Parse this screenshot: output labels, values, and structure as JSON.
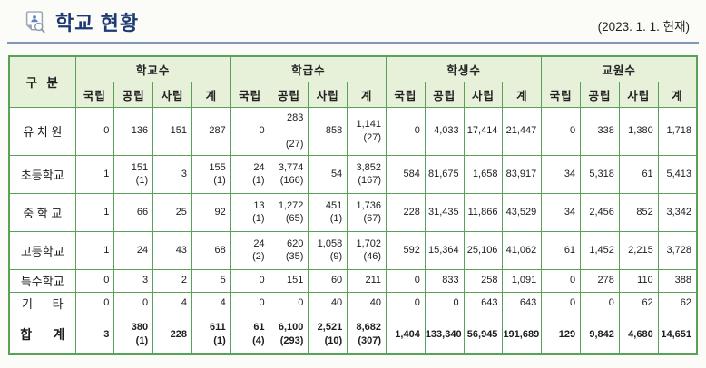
{
  "page": {
    "title": "학교 현황",
    "date_note": "(2023. 1. 1. 현재)",
    "icon": "document-search-icon"
  },
  "colors": {
    "title_text": "#1e3a75",
    "title_rule": "#8296b5",
    "table_border": "#57a257",
    "header_bg": "#e7f0d9"
  },
  "table": {
    "corner_header": "구  분",
    "groups": [
      {
        "label": "학교수"
      },
      {
        "label": "학급수"
      },
      {
        "label": "학생수"
      },
      {
        "label": "교원수"
      }
    ],
    "sub_headers": [
      "국립",
      "공립",
      "사립",
      "계"
    ],
    "rows": [
      {
        "label": "유 치 원",
        "cells": [
          "0",
          "136",
          "151",
          "287",
          "0",
          "283\n\n(27)",
          "858",
          "1,141\n(27)",
          "0",
          "4,033",
          "17,414",
          "21,447",
          "0",
          "338",
          "1,380",
          "1,718"
        ]
      },
      {
        "label": "초등학교",
        "cells": [
          "1",
          "151\n(1)",
          "3",
          "155\n(1)",
          "24\n(1)",
          "3,774\n(166)",
          "54",
          "3,852\n(167)",
          "584",
          "81,675",
          "1,658",
          "83,917",
          "34",
          "5,318",
          "61",
          "5,413"
        ]
      },
      {
        "label": "중 학 교",
        "cells": [
          "1",
          "66",
          "25",
          "92",
          "13\n(1)",
          "1,272\n(65)",
          "451\n(1)",
          "1,736\n(67)",
          "228",
          "31,435",
          "11,866",
          "43,529",
          "34",
          "2,456",
          "852",
          "3,342"
        ]
      },
      {
        "label": "고등학교",
        "cells": [
          "1",
          "24",
          "43",
          "68",
          "24\n(2)",
          "620\n(35)",
          "1,058\n(9)",
          "1,702\n(46)",
          "592",
          "15,364",
          "25,106",
          "41,062",
          "61",
          "1,452",
          "2,215",
          "3,728"
        ]
      },
      {
        "label": "특수학교",
        "cells": [
          "0",
          "3",
          "2",
          "5",
          "0",
          "151",
          "60",
          "211",
          "0",
          "833",
          "258",
          "1,091",
          "0",
          "278",
          "110",
          "388"
        ]
      },
      {
        "label": "기      타",
        "cells": [
          "0",
          "0",
          "4",
          "4",
          "0",
          "0",
          "40",
          "40",
          "0",
          "0",
          "643",
          "643",
          "0",
          "0",
          "62",
          "62"
        ]
      },
      {
        "label": "합      계",
        "is_total": true,
        "cells": [
          "3",
          "380\n(1)",
          "228",
          "611\n(1)",
          "61\n(4)",
          "6,100\n(293)",
          "2,521\n(10)",
          "8,682\n(307)",
          "1,404",
          "133,340",
          "56,945",
          "191,689",
          "129",
          "9,842",
          "4,680",
          "14,651"
        ]
      }
    ]
  }
}
